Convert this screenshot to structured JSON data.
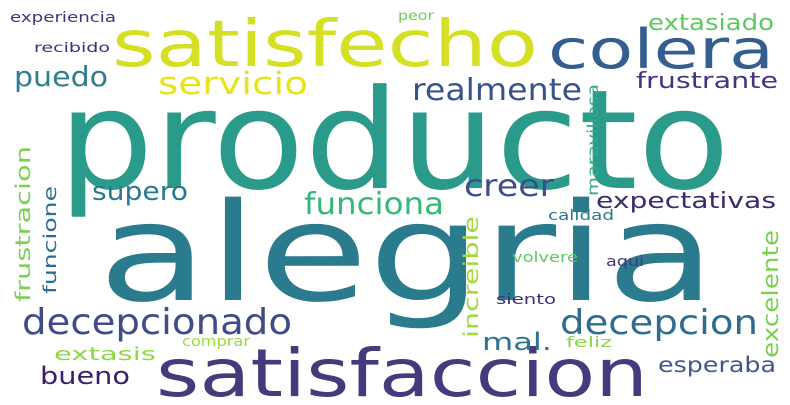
{
  "cloud": {
    "words": [
      {
        "text": "producto",
        "color": "#2a9b8a"
      },
      {
        "text": "alegria",
        "color": "#2a7b8e"
      },
      {
        "text": "satisfecho",
        "color": "#d5df24"
      },
      {
        "text": "satisfaccion",
        "color": "#463a7d"
      },
      {
        "text": "colera",
        "color": "#335e8d"
      },
      {
        "text": "decepcionado",
        "color": "#404c89"
      },
      {
        "text": "decepcion",
        "color": "#2f6c8e"
      },
      {
        "text": "funciona",
        "color": "#35b779"
      },
      {
        "text": "servicio",
        "color": "#e7e419"
      },
      {
        "text": "realmente",
        "color": "#3a528b"
      },
      {
        "text": "puedo",
        "color": "#2f7d8f"
      },
      {
        "text": "creer",
        "color": "#3c4e8a"
      },
      {
        "text": "supero",
        "color": "#2a7a8e"
      },
      {
        "text": "frustrante",
        "color": "#46327e"
      },
      {
        "text": "extasiado",
        "color": "#5ec962"
      },
      {
        "text": "expectativas",
        "color": "#3d2a6d"
      },
      {
        "text": "bueno",
        "color": "#3b1f6e"
      },
      {
        "text": "mal.",
        "color": "#2c738e"
      },
      {
        "text": "esperaba",
        "color": "#44558a"
      },
      {
        "text": "excelente",
        "color": "#7ad151"
      },
      {
        "text": "frustracion",
        "color": "#7ad151"
      },
      {
        "text": "funcione",
        "color": "#2d6e8e"
      },
      {
        "text": "extasis",
        "color": "#8fd744"
      },
      {
        "text": "increible",
        "color": "#a0da39"
      },
      {
        "text": "maravillosa",
        "color": "#32a886"
      },
      {
        "text": "calidad",
        "color": "#2a788e"
      },
      {
        "text": "volvere",
        "color": "#5ec962"
      },
      {
        "text": "aqui",
        "color": "#48347e"
      },
      {
        "text": "siento",
        "color": "#3e2f7a"
      },
      {
        "text": "feliz",
        "color": "#8ad547"
      },
      {
        "text": "comprar",
        "color": "#9bd93c"
      },
      {
        "text": "experiencia",
        "color": "#46327e"
      },
      {
        "text": "recibido",
        "color": "#3e2f7a"
      },
      {
        "text": "peor",
        "color": "#6cce59"
      }
    ]
  }
}
